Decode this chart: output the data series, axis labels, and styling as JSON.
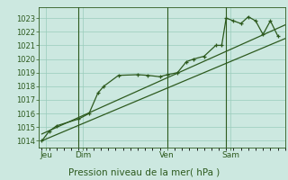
{
  "bg_color": "#cce8e0",
  "plot_bg_color": "#cce8e0",
  "grid_color": "#99ccbb",
  "line_color": "#2d5a1e",
  "text_color": "#2d5a1e",
  "title": "Pression niveau de la mer( hPa )",
  "ylim": [
    1013.5,
    1023.8
  ],
  "yticks": [
    1014,
    1015,
    1016,
    1017,
    1018,
    1019,
    1020,
    1021,
    1022,
    1023
  ],
  "day_labels": [
    "Jeu",
    "Dim",
    "Ven",
    "Sam"
  ],
  "day_positions": [
    0.3,
    2.8,
    8.5,
    12.8
  ],
  "vline_positions": [
    2.5,
    8.5,
    12.5
  ],
  "xlim": [
    -0.2,
    16.5
  ],
  "series1_x": [
    0.0,
    0.5,
    1.0,
    2.5,
    3.2,
    3.8,
    4.2,
    5.2,
    6.5,
    7.2,
    8.0,
    8.5,
    9.2,
    9.8,
    10.3,
    11.0,
    11.8,
    12.2,
    12.5,
    13.0,
    13.5,
    14.0,
    14.5,
    15.0,
    15.5,
    16.0
  ],
  "series1_y": [
    1014.0,
    1014.7,
    1015.1,
    1015.6,
    1016.0,
    1017.5,
    1018.0,
    1018.8,
    1018.85,
    1018.8,
    1018.7,
    1018.85,
    1019.0,
    1019.8,
    1020.0,
    1020.2,
    1021.0,
    1021.0,
    1023.0,
    1022.8,
    1022.6,
    1023.1,
    1022.8,
    1021.8,
    1022.8,
    1021.7
  ],
  "series2_x": [
    0.0,
    16.5
  ],
  "series2_y": [
    1014.0,
    1021.5
  ],
  "series3_x": [
    0.0,
    16.5
  ],
  "series3_y": [
    1014.5,
    1022.5
  ],
  "ytick_fontsize": 6.0,
  "xtick_fontsize": 6.5,
  "title_fontsize": 7.5
}
